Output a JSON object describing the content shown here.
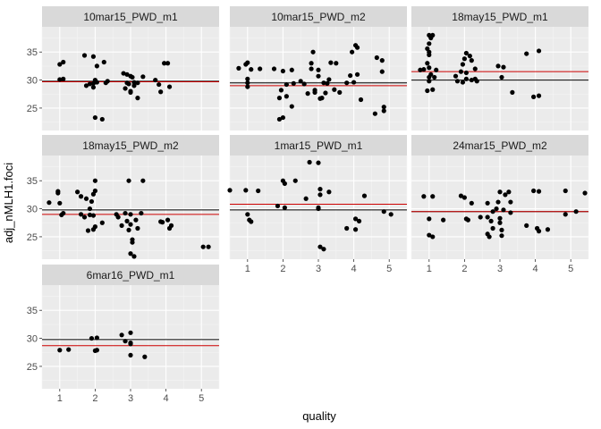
{
  "chart_data": {
    "type": "scatter",
    "xlabel": "quality",
    "ylabel": "adj_nMLH1.foci",
    "xlim": [
      0.5,
      5.5
    ],
    "ylim": [
      21,
      39.5
    ],
    "x_ticks": [
      1,
      2,
      3,
      4,
      5
    ],
    "y_ticks": [
      25,
      30,
      35
    ],
    "grid": true,
    "line_colors": {
      "black_line": "#000000",
      "red_line": "#cc0000"
    },
    "point_color": "#000000",
    "panel_bg": "#ebebeb",
    "strip_bg": "#d9d9d9",
    "panels": [
      {
        "title": "10mar15_PWD_m1",
        "black_line": 29.8,
        "red_line": 29.7,
        "points": [
          [
            1.0,
            32.8
          ],
          [
            1.1,
            33.2
          ],
          [
            1.0,
            30.1
          ],
          [
            1.1,
            30.2
          ],
          [
            1.7,
            34.4
          ],
          [
            1.95,
            34.2
          ],
          [
            1.75,
            29.0
          ],
          [
            1.85,
            29.3
          ],
          [
            1.95,
            29.4
          ],
          [
            2.0,
            30.0
          ],
          [
            2.05,
            29.6
          ],
          [
            1.95,
            28.7
          ],
          [
            2.0,
            23.3
          ],
          [
            2.2,
            23.0
          ],
          [
            2.25,
            33.2
          ],
          [
            2.3,
            29.5
          ],
          [
            2.35,
            29.8
          ],
          [
            2.05,
            32.5
          ],
          [
            2.8,
            31.2
          ],
          [
            2.9,
            31.0
          ],
          [
            3.0,
            30.7
          ],
          [
            3.05,
            30.5
          ],
          [
            3.1,
            29.6
          ],
          [
            3.1,
            29.0
          ],
          [
            2.9,
            29.5
          ],
          [
            2.85,
            28.5
          ],
          [
            3.0,
            28.0
          ],
          [
            3.0,
            27.8
          ],
          [
            3.2,
            26.8
          ],
          [
            3.2,
            29.5
          ],
          [
            3.35,
            30.6
          ],
          [
            2.95,
            29.3
          ],
          [
            3.7,
            30.0
          ],
          [
            3.8,
            29.2
          ],
          [
            3.85,
            27.9
          ],
          [
            3.95,
            33.0
          ],
          [
            4.05,
            33.0
          ],
          [
            4.1,
            28.8
          ]
        ]
      },
      {
        "title": "10mar15_PWD_m2",
        "black_line": 29.5,
        "red_line": 29.0,
        "points": [
          [
            0.75,
            32.1
          ],
          [
            0.95,
            32.8
          ],
          [
            1.0,
            33.1
          ],
          [
            1.0,
            30.2
          ],
          [
            1.0,
            29.5
          ],
          [
            1.0,
            28.8
          ],
          [
            1.1,
            31.9
          ],
          [
            1.35,
            32.0
          ],
          [
            1.75,
            32.0
          ],
          [
            1.9,
            26.8
          ],
          [
            1.9,
            23.0
          ],
          [
            2.0,
            23.3
          ],
          [
            2.0,
            31.6
          ],
          [
            2.1,
            27.1
          ],
          [
            2.1,
            29.2
          ],
          [
            2.25,
            31.8
          ],
          [
            2.25,
            25.3
          ],
          [
            2.3,
            29.4
          ],
          [
            1.95,
            28.2
          ],
          [
            2.5,
            29.8
          ],
          [
            2.8,
            33.0
          ],
          [
            2.8,
            32.0
          ],
          [
            2.85,
            35.0
          ],
          [
            2.9,
            28.2
          ],
          [
            2.9,
            27.8
          ],
          [
            3.0,
            31.8
          ],
          [
            3.0,
            30.7
          ],
          [
            3.05,
            26.7
          ],
          [
            3.1,
            26.8
          ],
          [
            2.7,
            27.6
          ],
          [
            3.15,
            29.5
          ],
          [
            3.2,
            27.7
          ],
          [
            3.25,
            29.4
          ],
          [
            3.3,
            30.1
          ],
          [
            3.35,
            33.1
          ],
          [
            3.45,
            28.3
          ],
          [
            3.5,
            33.0
          ],
          [
            3.6,
            27.8
          ],
          [
            2.6,
            29.3
          ],
          [
            3.8,
            29.5
          ],
          [
            3.95,
            35.0
          ],
          [
            4.05,
            36.2
          ],
          [
            4.1,
            35.8
          ],
          [
            4.2,
            26.5
          ],
          [
            4.0,
            29.6
          ],
          [
            4.1,
            31.0
          ],
          [
            3.9,
            30.8
          ],
          [
            4.65,
            34.0
          ],
          [
            4.8,
            33.5
          ],
          [
            4.8,
            31.5
          ],
          [
            4.85,
            25.2
          ],
          [
            4.85,
            24.5
          ],
          [
            4.6,
            24.0
          ]
        ]
      },
      {
        "title": "18may15_PWD_m1",
        "black_line": 30.0,
        "red_line": 31.5,
        "points": [
          [
            0.75,
            31.8
          ],
          [
            0.85,
            31.9
          ],
          [
            0.95,
            33.0
          ],
          [
            1.0,
            34.5
          ],
          [
            1.0,
            35.0
          ],
          [
            1.0,
            38.0
          ],
          [
            1.05,
            37.5
          ],
          [
            1.1,
            38.0
          ],
          [
            1.0,
            36.5
          ],
          [
            0.95,
            35.6
          ],
          [
            1.0,
            32.2
          ],
          [
            1.05,
            31.0
          ],
          [
            1.0,
            30.5
          ],
          [
            1.0,
            29.8
          ],
          [
            0.95,
            28.1
          ],
          [
            1.1,
            28.3
          ],
          [
            1.15,
            30.5
          ],
          [
            1.2,
            31.8
          ],
          [
            1.75,
            30.7
          ],
          [
            1.8,
            29.8
          ],
          [
            1.9,
            31.5
          ],
          [
            1.95,
            32.8
          ],
          [
            2.0,
            33.8
          ],
          [
            2.05,
            34.8
          ],
          [
            2.15,
            34.3
          ],
          [
            2.2,
            33.5
          ],
          [
            2.3,
            32.0
          ],
          [
            1.95,
            29.6
          ],
          [
            2.05,
            30.2
          ],
          [
            2.2,
            30.0
          ],
          [
            2.3,
            30.2
          ],
          [
            2.35,
            29.8
          ],
          [
            2.05,
            31.3
          ],
          [
            2.95,
            32.5
          ],
          [
            3.05,
            30.5
          ],
          [
            3.1,
            32.3
          ],
          [
            3.35,
            27.8
          ],
          [
            3.75,
            34.7
          ],
          [
            3.95,
            27.0
          ],
          [
            4.1,
            27.2
          ],
          [
            4.1,
            35.2
          ]
        ]
      },
      {
        "title": "18may15_PWD_m2",
        "black_line": 29.8,
        "red_line": 29.0,
        "points": [
          [
            0.7,
            31.1
          ],
          [
            0.95,
            33.1
          ],
          [
            0.95,
            32.8
          ],
          [
            1.0,
            31.0
          ],
          [
            1.05,
            28.9
          ],
          [
            1.1,
            29.2
          ],
          [
            1.5,
            33.0
          ],
          [
            1.6,
            32.2
          ],
          [
            1.75,
            31.8
          ],
          [
            1.85,
            30.0
          ],
          [
            1.9,
            31.3
          ],
          [
            1.95,
            32.6
          ],
          [
            2.0,
            35.0
          ],
          [
            2.0,
            33.2
          ],
          [
            1.95,
            28.8
          ],
          [
            1.85,
            28.9
          ],
          [
            1.7,
            28.5
          ],
          [
            1.8,
            26.1
          ],
          [
            1.95,
            26.3
          ],
          [
            2.0,
            26.8
          ],
          [
            2.2,
            27.5
          ],
          [
            1.6,
            29.0
          ],
          [
            2.6,
            29.0
          ],
          [
            2.65,
            28.5
          ],
          [
            2.75,
            27.0
          ],
          [
            2.85,
            29.2
          ],
          [
            2.9,
            27.8
          ],
          [
            2.95,
            26.2
          ],
          [
            3.0,
            29.0
          ],
          [
            3.0,
            27.2
          ],
          [
            3.05,
            24.5
          ],
          [
            3.05,
            24.0
          ],
          [
            3.0,
            22.0
          ],
          [
            3.1,
            21.5
          ],
          [
            3.15,
            28.0
          ],
          [
            3.2,
            26.5
          ],
          [
            3.3,
            29.2
          ],
          [
            3.35,
            35.0
          ],
          [
            2.95,
            35.0
          ],
          [
            3.85,
            27.7
          ],
          [
            3.9,
            27.6
          ],
          [
            4.05,
            28.0
          ],
          [
            4.1,
            26.5
          ],
          [
            4.15,
            27.0
          ],
          [
            5.05,
            23.2
          ],
          [
            5.2,
            23.2
          ]
        ]
      },
      {
        "title": "1mar15_PWD_m1",
        "black_line": 29.8,
        "red_line": 30.8,
        "points": [
          [
            0.5,
            33.3
          ],
          [
            0.95,
            33.3
          ],
          [
            1.0,
            29.0
          ],
          [
            1.05,
            28.0
          ],
          [
            1.1,
            27.7
          ],
          [
            1.3,
            33.2
          ],
          [
            1.85,
            30.5
          ],
          [
            2.0,
            35.0
          ],
          [
            2.05,
            34.5
          ],
          [
            2.05,
            30.2
          ],
          [
            2.35,
            35.0
          ],
          [
            2.65,
            31.8
          ],
          [
            2.75,
            38.3
          ],
          [
            3.0,
            38.2
          ],
          [
            3.05,
            33.5
          ],
          [
            3.05,
            32.5
          ],
          [
            3.0,
            30.2
          ],
          [
            3.0,
            30.0
          ],
          [
            3.05,
            23.2
          ],
          [
            3.15,
            22.8
          ],
          [
            3.3,
            33.0
          ],
          [
            3.8,
            26.5
          ],
          [
            4.05,
            26.3
          ],
          [
            4.05,
            28.2
          ],
          [
            4.15,
            27.8
          ],
          [
            4.3,
            32.3
          ],
          [
            4.85,
            29.5
          ],
          [
            5.05,
            29.0
          ]
        ]
      },
      {
        "title": "24mar15_PWD_m2",
        "black_line": 29.5,
        "red_line": 29.5,
        "points": [
          [
            0.85,
            32.2
          ],
          [
            1.0,
            28.2
          ],
          [
            1.0,
            25.3
          ],
          [
            1.1,
            25.0
          ],
          [
            1.1,
            32.2
          ],
          [
            1.4,
            28.0
          ],
          [
            1.9,
            32.3
          ],
          [
            2.0,
            32.0
          ],
          [
            2.05,
            28.2
          ],
          [
            2.1,
            28.0
          ],
          [
            2.2,
            31.0
          ],
          [
            2.45,
            28.5
          ],
          [
            2.65,
            28.5
          ],
          [
            2.65,
            31.0
          ],
          [
            2.65,
            25.5
          ],
          [
            2.7,
            25.0
          ],
          [
            2.75,
            27.8
          ],
          [
            2.8,
            26.5
          ],
          [
            2.8,
            29.5
          ],
          [
            2.9,
            30.0
          ],
          [
            2.95,
            31.2
          ],
          [
            3.0,
            33.0
          ],
          [
            3.0,
            28.3
          ],
          [
            3.0,
            27.5
          ],
          [
            3.05,
            25.2
          ],
          [
            3.05,
            26.2
          ],
          [
            3.1,
            29.8
          ],
          [
            3.15,
            32.5
          ],
          [
            3.25,
            33.0
          ],
          [
            3.3,
            29.3
          ],
          [
            3.3,
            31.2
          ],
          [
            3.75,
            27.0
          ],
          [
            3.95,
            33.2
          ],
          [
            4.1,
            33.1
          ],
          [
            4.05,
            26.5
          ],
          [
            4.1,
            26.0
          ],
          [
            4.35,
            26.3
          ],
          [
            4.85,
            33.2
          ],
          [
            4.85,
            29.0
          ],
          [
            5.15,
            29.5
          ],
          [
            5.4,
            32.8
          ]
        ]
      },
      {
        "title": "6mar16_PWD_m1",
        "black_line": 29.8,
        "red_line": 28.7,
        "points": [
          [
            1.0,
            27.9
          ],
          [
            1.25,
            28.0
          ],
          [
            1.9,
            30.0
          ],
          [
            2.05,
            30.1
          ],
          [
            2.0,
            27.8
          ],
          [
            2.05,
            27.9
          ],
          [
            2.75,
            30.6
          ],
          [
            2.85,
            29.5
          ],
          [
            3.0,
            31.0
          ],
          [
            3.0,
            29.0
          ],
          [
            3.0,
            27.0
          ],
          [
            3.0,
            29.2
          ],
          [
            3.4,
            26.7
          ]
        ]
      }
    ]
  }
}
